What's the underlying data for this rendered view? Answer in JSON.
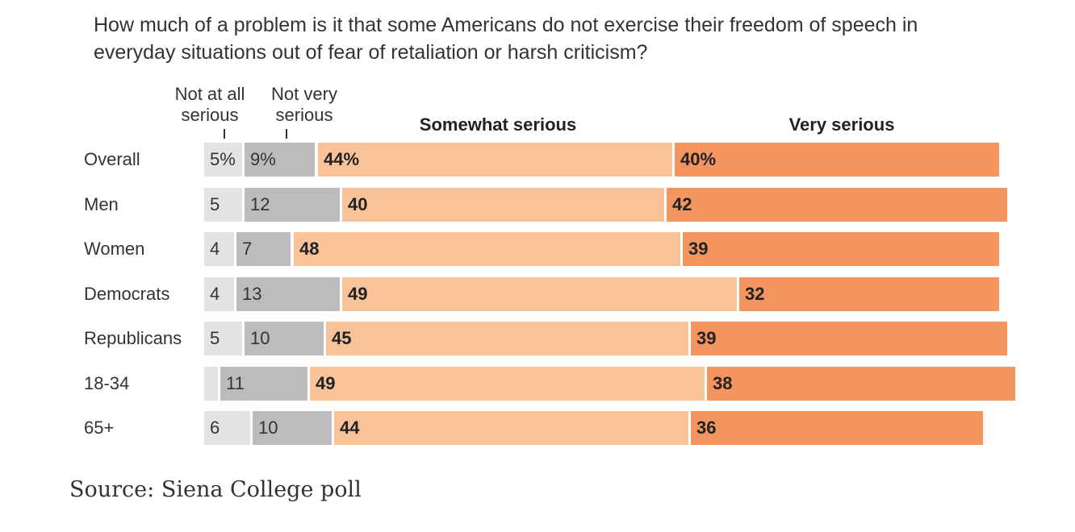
{
  "chart_data": {
    "type": "bar",
    "orientation": "horizontal",
    "stacked": true,
    "title": "How much of a problem is it that some Americans do not exercise their freedom of speech in everyday situations out of fear of retaliation or harsh criticism?",
    "series": [
      {
        "name": "Not at all serious",
        "color": "#e3e3e5"
      },
      {
        "name": "Not very serious",
        "color": "#bcbcbe"
      },
      {
        "name": "Somewhat serious",
        "color": "#f9c39a"
      },
      {
        "name": "Very serious",
        "color": "#f3955f"
      }
    ],
    "headers": {
      "not_at_all": [
        "Not at all",
        "serious"
      ],
      "not_very": [
        "Not very",
        "serious"
      ],
      "somewhat": "Somewhat serious",
      "very": "Very serious"
    },
    "categories": [
      "Overall",
      "Men",
      "Women",
      "Democrats",
      "Republicans",
      "18-34",
      "65+"
    ],
    "values": [
      [
        5,
        9,
        44,
        40
      ],
      [
        5,
        12,
        40,
        42
      ],
      [
        4,
        7,
        48,
        39
      ],
      [
        4,
        13,
        49,
        32
      ],
      [
        5,
        10,
        45,
        39
      ],
      [
        2,
        11,
        49,
        38
      ],
      [
        6,
        10,
        44,
        36
      ]
    ],
    "labels": [
      [
        "5%",
        "9%",
        "44%",
        "40%"
      ],
      [
        "5",
        "12",
        "40",
        "42"
      ],
      [
        "4",
        "7",
        "48",
        "39"
      ],
      [
        "4",
        "13",
        "49",
        "32"
      ],
      [
        "5",
        "10",
        "45",
        "39"
      ],
      [
        "",
        "11",
        "49",
        "38"
      ],
      [
        "6",
        "10",
        "44",
        "36"
      ]
    ],
    "xlim": [
      0,
      100
    ],
    "source": "Source: Siena College poll"
  }
}
